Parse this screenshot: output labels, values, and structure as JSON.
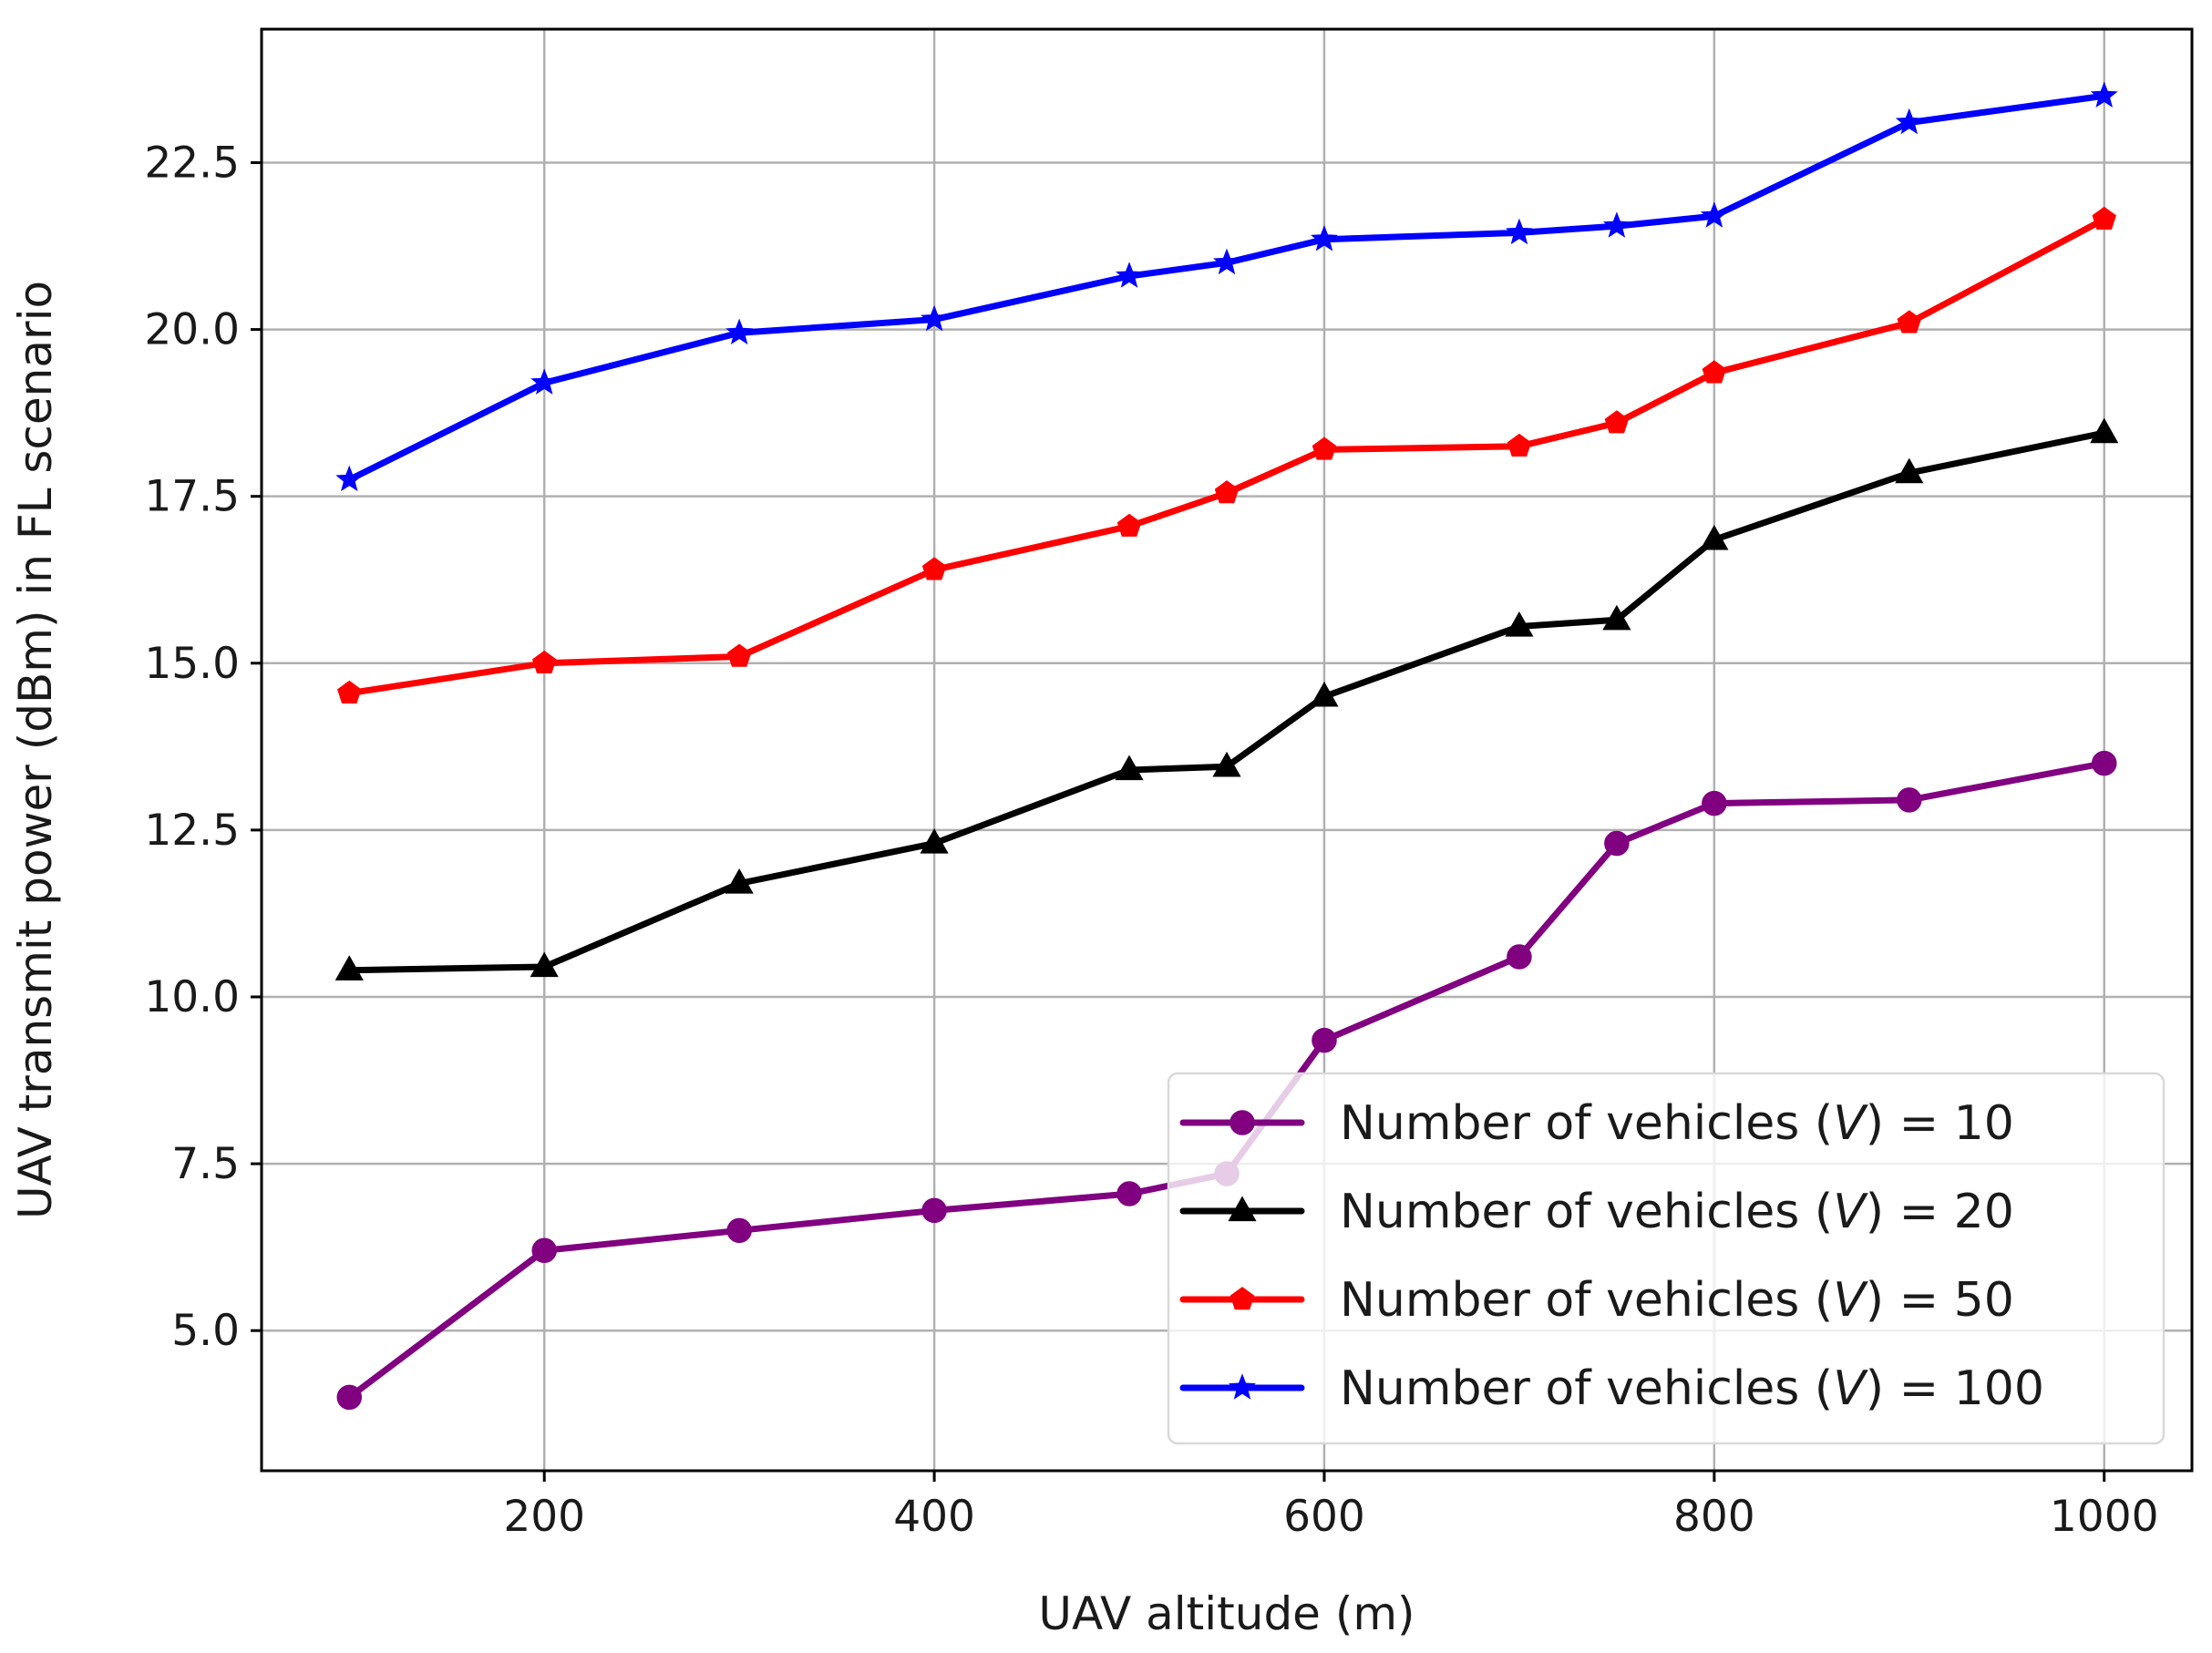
{
  "chart_data": {
    "type": "line",
    "xlabel": "UAV altitude (m)",
    "ylabel": "UAV transmit power (dBm) in FL scenario",
    "xlim": [
      55,
      1045
    ],
    "ylim": [
      2.9,
      24.5
    ],
    "xticks": [
      200,
      400,
      600,
      800,
      1000
    ],
    "yticks": [
      5.0,
      7.5,
      10.0,
      12.5,
      15.0,
      17.5,
      20.0,
      22.5
    ],
    "xtick_labels": [
      "200",
      "400",
      "600",
      "800",
      "1000"
    ],
    "ytick_labels": [
      "5.0",
      "7.5",
      "10.0",
      "12.5",
      "15.0",
      "17.5",
      "20.0",
      "22.5"
    ],
    "grid": true,
    "legend_position": "lower-right",
    "x": [
      100,
      200,
      300,
      400,
      500,
      550,
      600,
      700,
      750,
      800,
      900,
      1000
    ],
    "series": [
      {
        "name": "Number of vehicles (V) = 10",
        "legend_prefix": "Number of vehicles (",
        "legend_var": "V",
        "legend_suffix": ") = 10",
        "color": "#800080",
        "marker": "circle",
        "values": [
          4.0,
          6.2,
          6.5,
          6.8,
          7.05,
          7.35,
          9.35,
          10.6,
          12.3,
          12.9,
          12.95,
          13.5
        ]
      },
      {
        "name": "Number of vehicles (V) = 20",
        "legend_prefix": "Number of vehicles (",
        "legend_var": "V",
        "legend_suffix": ") = 20",
        "color": "#000000",
        "marker": "triangle",
        "values": [
          10.4,
          10.45,
          11.7,
          12.3,
          13.4,
          13.45,
          14.5,
          15.55,
          15.65,
          16.85,
          17.85,
          18.45
        ]
      },
      {
        "name": "Number of vehicles (V) = 50",
        "legend_prefix": "Number of vehicles (",
        "legend_var": "V",
        "legend_suffix": ") = 50",
        "color": "#ff0000",
        "marker": "pentagon",
        "values": [
          14.55,
          15.0,
          15.1,
          16.4,
          17.05,
          17.55,
          18.2,
          18.25,
          18.6,
          19.35,
          20.1,
          21.65
        ]
      },
      {
        "name": "Number of vehicles (V) = 100",
        "legend_prefix": "Number of vehicles (",
        "legend_var": "V",
        "legend_suffix": ") = 100",
        "color": "#0000ff",
        "marker": "star",
        "values": [
          17.75,
          19.2,
          19.95,
          20.15,
          20.8,
          21.0,
          21.35,
          21.45,
          21.55,
          21.7,
          23.1,
          23.5
        ]
      }
    ]
  }
}
